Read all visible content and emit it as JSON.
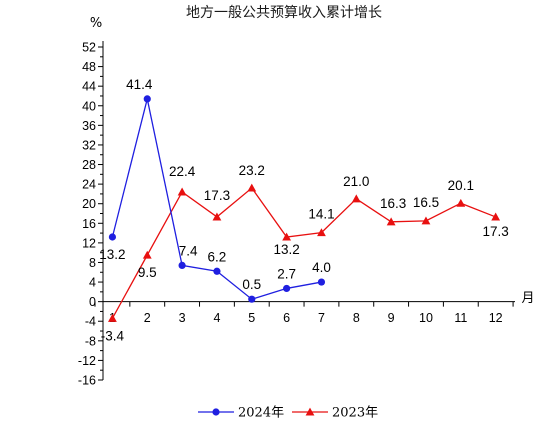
{
  "chart_data": {
    "type": "line",
    "title": "地方一般公共预算收入累计增长",
    "ylabel": "%",
    "xlabel": "月",
    "ylim": [
      -16,
      52
    ],
    "yticks": [
      52,
      48,
      44,
      40,
      36,
      32,
      28,
      24,
      20,
      16,
      12,
      8,
      4,
      0,
      -4,
      -8,
      -12,
      -16
    ],
    "x": [
      1,
      2,
      3,
      4,
      5,
      6,
      7,
      8,
      9,
      10,
      11,
      12
    ],
    "xtick_labels": [
      "1",
      "2",
      "3",
      "4",
      "5",
      "6",
      "7",
      "8",
      "9",
      "10",
      "11",
      "12"
    ],
    "series": [
      {
        "name": "2024年",
        "color": "#1f1fe0",
        "marker": "circle",
        "x": [
          1,
          2,
          3,
          4,
          5,
          6,
          7
        ],
        "values": [
          13.2,
          41.4,
          7.4,
          6.2,
          0.5,
          2.7,
          4.0
        ],
        "labels": [
          "13.2",
          "41.4",
          "7.4",
          "6.2",
          "0.5",
          "2.7",
          "4.0"
        ]
      },
      {
        "name": "2023年",
        "color": "#e81010",
        "marker": "triangle",
        "x": [
          1,
          2,
          3,
          4,
          5,
          6,
          7,
          8,
          9,
          10,
          11,
          12
        ],
        "values": [
          -3.4,
          9.5,
          22.4,
          17.3,
          23.2,
          13.2,
          14.1,
          21.0,
          16.3,
          16.5,
          20.1,
          17.3
        ],
        "labels": [
          "-3.4",
          "9.5",
          "22.4",
          "17.3",
          "23.2",
          "13.2",
          "14.1",
          "21.0",
          "16.3",
          "16.5",
          "20.1",
          "17.3"
        ]
      }
    ],
    "grid": false,
    "legend_position": "bottom"
  }
}
